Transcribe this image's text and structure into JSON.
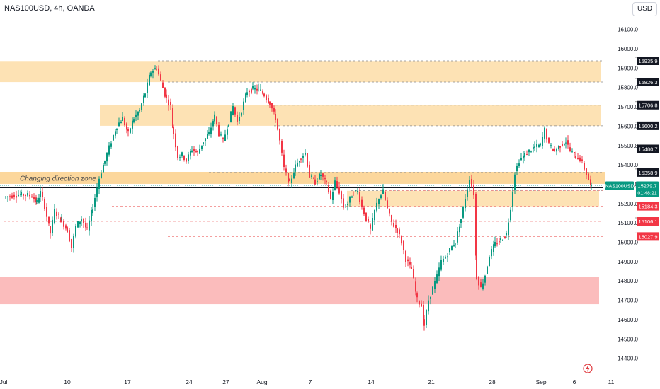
{
  "header": {
    "symbol": "NAS100USD, 4h, OANDA",
    "currency": "USD"
  },
  "chart_data": {
    "type": "candlestick",
    "ylim": [
      14380,
      16200
    ],
    "y_ticks": [
      14400,
      14500,
      14600,
      14700,
      14800,
      14900,
      15000,
      15100,
      15200,
      15300,
      15400,
      15500,
      15600,
      15700,
      15800,
      15900,
      16000,
      16100
    ],
    "x_ticks": [
      {
        "label": "Jul",
        "bar": 0
      },
      {
        "label": "10",
        "bar": 90
      },
      {
        "label": "17",
        "bar": 175
      },
      {
        "label": "24",
        "bar": 262
      },
      {
        "label": "27",
        "bar": 314
      },
      {
        "label": "Aug",
        "bar": 365
      },
      {
        "label": "7",
        "bar": 433
      },
      {
        "label": "14",
        "bar": 519
      },
      {
        "label": "21",
        "bar": 604
      },
      {
        "label": "28",
        "bar": 690
      },
      {
        "label": "Sep",
        "bar": 759
      },
      {
        "label": "6",
        "bar": 806
      },
      {
        "label": "11",
        "bar": 858
      }
    ],
    "zones": [
      {
        "type": "supply",
        "from": 15826,
        "to": 15935,
        "x0": 0,
        "x1": 844,
        "color": "#fde2b4"
      },
      {
        "type": "supply",
        "from": 15600,
        "to": 15707,
        "x0": 141,
        "x1": 844,
        "color": "#fde2b4"
      },
      {
        "type": "direction",
        "from": 15300,
        "to": 15362,
        "x0": 0,
        "x1": 850,
        "color": "#fcd79c",
        "label": "Changing direction zone"
      },
      {
        "type": "demand",
        "from": 15184,
        "to": 15264,
        "x0": 490,
        "x1": 841,
        "color": "#fde2b4"
      },
      {
        "type": "strong-demand",
        "from": 14678,
        "to": 14818,
        "x0": 0,
        "x1": 841,
        "color": "#fbbcbc"
      }
    ],
    "levels": [
      {
        "value": 15935.9,
        "label": "15935.9",
        "style": "dark",
        "x0": 218
      },
      {
        "value": 15826.3,
        "label": "15826.3",
        "style": "dark",
        "x0": 232
      },
      {
        "value": 15706.8,
        "label": "15706.8",
        "style": "dark",
        "x0": 372
      },
      {
        "value": 15600.2,
        "label": "15600.2",
        "style": "dark",
        "x0": 382
      },
      {
        "value": 15480.7,
        "label": "15480.7",
        "style": "dark",
        "x0": 175
      },
      {
        "value": 15358.9,
        "label": "15358.9",
        "style": "dark",
        "x0": 290
      },
      {
        "value": 15264.6,
        "label": "15264.6",
        "style": "dark",
        "x0": 490
      },
      {
        "value": 15264.5,
        "label": "15264.5",
        "style": "red",
        "x0": 533
      },
      {
        "value": 15184.3,
        "label": "15184.3",
        "style": "red",
        "x0": 153
      },
      {
        "value": 15106.1,
        "label": "15106.1",
        "style": "red",
        "x0": 0
      },
      {
        "value": 15027.9,
        "label": "15027.9",
        "style": "red",
        "x0": 232
      }
    ],
    "current": {
      "label": "NAS100USD",
      "value": "15279.7",
      "countdown": "01:48:21",
      "price": 15279.7
    },
    "path": [
      [
        0,
        15230
      ],
      [
        12,
        15240
      ],
      [
        25,
        15245
      ],
      [
        40,
        15238
      ],
      [
        47,
        15205
      ],
      [
        52,
        15255
      ],
      [
        58,
        15185
      ],
      [
        66,
        15045
      ],
      [
        72,
        15160
      ],
      [
        82,
        15110
      ],
      [
        90,
        15060
      ],
      [
        96,
        14970
      ],
      [
        102,
        15080
      ],
      [
        110,
        15120
      ],
      [
        118,
        15060
      ],
      [
        126,
        15180
      ],
      [
        135,
        15330
      ],
      [
        143,
        15420
      ],
      [
        152,
        15520
      ],
      [
        160,
        15600
      ],
      [
        168,
        15640
      ],
      [
        176,
        15560
      ],
      [
        184,
        15640
      ],
      [
        192,
        15680
      ],
      [
        200,
        15770
      ],
      [
        208,
        15880
      ],
      [
        216,
        15900
      ],
      [
        222,
        15830
      ],
      [
        230,
        15740
      ],
      [
        236,
        15700
      ],
      [
        240,
        15560
      ],
      [
        246,
        15440
      ],
      [
        252,
        15450
      ],
      [
        258,
        15420
      ],
      [
        266,
        15480
      ],
      [
        274,
        15460
      ],
      [
        282,
        15520
      ],
      [
        290,
        15560
      ],
      [
        298,
        15650
      ],
      [
        304,
        15560
      ],
      [
        310,
        15520
      ],
      [
        318,
        15620
      ],
      [
        324,
        15700
      ],
      [
        330,
        15620
      ],
      [
        336,
        15680
      ],
      [
        344,
        15780
      ],
      [
        352,
        15790
      ],
      [
        360,
        15790
      ],
      [
        368,
        15760
      ],
      [
        376,
        15720
      ],
      [
        384,
        15640
      ],
      [
        390,
        15520
      ],
      [
        396,
        15380
      ],
      [
        404,
        15300
      ],
      [
        412,
        15390
      ],
      [
        420,
        15440
      ],
      [
        426,
        15460
      ],
      [
        432,
        15340
      ],
      [
        440,
        15310
      ],
      [
        448,
        15350
      ],
      [
        456,
        15300
      ],
      [
        462,
        15220
      ],
      [
        468,
        15310
      ],
      [
        474,
        15260
      ],
      [
        480,
        15180
      ],
      [
        486,
        15200
      ],
      [
        494,
        15260
      ],
      [
        500,
        15260
      ],
      [
        506,
        15180
      ],
      [
        512,
        15120
      ],
      [
        518,
        15060
      ],
      [
        524,
        15160
      ],
      [
        530,
        15230
      ],
      [
        536,
        15260
      ],
      [
        542,
        15170
      ],
      [
        548,
        15100
      ],
      [
        556,
        15060
      ],
      [
        562,
        15000
      ],
      [
        568,
        14910
      ],
      [
        576,
        14860
      ],
      [
        584,
        14700
      ],
      [
        590,
        14670
      ],
      [
        594,
        14570
      ],
      [
        600,
        14700
      ],
      [
        606,
        14760
      ],
      [
        612,
        14820
      ],
      [
        618,
        14900
      ],
      [
        624,
        14920
      ],
      [
        630,
        14960
      ],
      [
        638,
        15000
      ],
      [
        646,
        15120
      ],
      [
        652,
        15230
      ],
      [
        658,
        15330
      ],
      [
        664,
        15250
      ],
      [
        668,
        14820
      ],
      [
        674,
        14760
      ],
      [
        680,
        14830
      ],
      [
        686,
        14930
      ],
      [
        694,
        14990
      ],
      [
        702,
        15010
      ],
      [
        710,
        15040
      ],
      [
        716,
        15180
      ],
      [
        722,
        15360
      ],
      [
        728,
        15420
      ],
      [
        736,
        15450
      ],
      [
        742,
        15470
      ],
      [
        750,
        15490
      ],
      [
        758,
        15500
      ],
      [
        764,
        15580
      ],
      [
        770,
        15500
      ],
      [
        778,
        15470
      ],
      [
        786,
        15500
      ],
      [
        794,
        15520
      ],
      [
        800,
        15470
      ],
      [
        808,
        15440
      ],
      [
        814,
        15430
      ],
      [
        820,
        15380
      ],
      [
        826,
        15320
      ],
      [
        830,
        15280
      ]
    ]
  }
}
